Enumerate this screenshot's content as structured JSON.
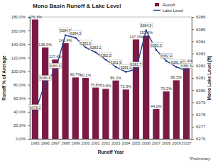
{
  "chart_data": {
    "type": "bar",
    "title": "Mono Basin Runoff & Lake Level",
    "x_label": "Runoff Year",
    "y_label": "Runoff % of Average",
    "y2_label": "Mono Lake Level (ft)",
    "annotations": [
      "*Preliminary"
    ],
    "categories": [
      "1995",
      "1996",
      "1997",
      "1998",
      "1999",
      "2000",
      "2001",
      "2002",
      "2003",
      "2004",
      "2005",
      "2006",
      "2007",
      "2008",
      "2009",
      "2010*"
    ],
    "series": [
      {
        "name": "Runoff",
        "type": "bar",
        "color": "#7b1a45",
        "values": [
          176.3,
          135.0,
          117.4,
          141.4,
          90.7,
          90.1,
          75.8,
          73.9,
          86.2,
          72.9,
          147.0,
          152.4,
          44.0,
          70.2,
          86.5,
          111.4
        ],
        "value_labels": [
          "176.3%",
          "135.0%",
          "117.4%",
          "141.4%",
          "90.7%",
          "90.1%",
          "75.8%",
          "73.9%",
          "86.2%",
          "72.9%",
          "147.0%",
          "152.4%",
          "44.0%",
          "70.2%",
          "86.5%",
          "111.4%"
        ]
      },
      {
        "name": "Lake Level",
        "type": "line",
        "axis": "y2",
        "color": "#1f3f8f",
        "marker": "circle",
        "values": [
          6378.2,
          6380.6,
          6381.6,
          6384.5,
          6384.3,
          6383.5,
          6383.1,
          6382.5,
          6381.9,
          6381.5,
          6381.7,
          6384.9,
          6383.3,
          6382.4,
          6381.9,
          6381.6
        ]
      }
    ],
    "ylim": [
      0,
      180
    ],
    "yticks": [
      {
        "value": 0,
        "label": "0.0%"
      },
      {
        "value": 20,
        "label": "20.0%"
      },
      {
        "value": 40,
        "label": "40.0%"
      },
      {
        "value": 60,
        "label": "60.0%"
      },
      {
        "value": 80,
        "label": "80.0%"
      },
      {
        "value": 100,
        "label": "100.0%"
      },
      {
        "value": 120,
        "label": "120.0%"
      },
      {
        "value": 140,
        "label": "140.0%"
      },
      {
        "value": 160,
        "label": "160.0%"
      },
      {
        "value": 180,
        "label": "180.0%"
      }
    ],
    "y2lim": [
      6376,
      6386
    ],
    "y2ticks": [
      6376,
      6377,
      6378,
      6379,
      6380,
      6381,
      6382,
      6383,
      6384,
      6385,
      6386
    ],
    "legend": "upper right",
    "data_labels": true,
    "grid": false
  }
}
